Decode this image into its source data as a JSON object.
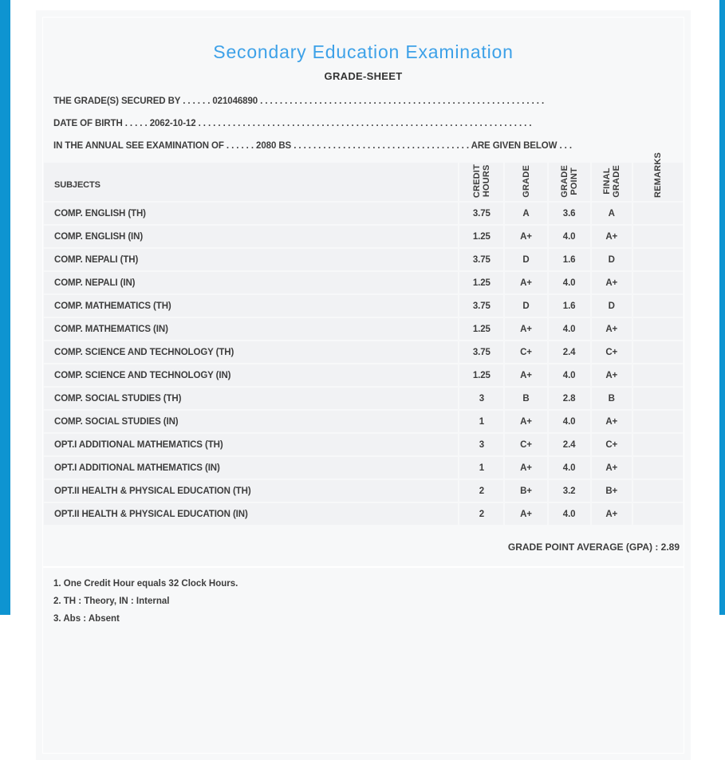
{
  "title": "Secondary Education Examination",
  "subtitle": "GRADE-SHEET",
  "info": {
    "secured_by": "THE GRADE(S) SECURED BY . . . . . . 021046890 . . . . . . . . . . . . . . . . . . . . . . . . . . . . . . . . . . . . . . . . . . . . . . . . . . . . . . . . . .",
    "dob": "DATE OF BIRTH . . . . . 2062-10-12 . . . . . . . . . . . . . . . . . . . . . . . . . . . . . . . . . . . . . . . . . . . . . . . . . . . . . . . . . . . . . . . . . . . .",
    "exam": "IN THE ANNUAL SEE EXAMINATION OF . . . . . . 2080 BS . . . . . . . . . . . . . . . . . . . . . . . . . . . . . . . . . . . . ARE GIVEN BELOW . . ."
  },
  "table": {
    "headers": {
      "subjects": "SUBJECTS",
      "credit_hours": "CREDIT\nHOURS",
      "grade": "GRADE",
      "grade_point": "GRADE\nPOINT",
      "final_grade": "FINAL\nGRADE",
      "remarks": "REMARKS"
    },
    "rows": [
      {
        "subject": "COMP. ENGLISH (TH)",
        "credit_hours": "3.75",
        "grade": "A",
        "grade_point": "3.6",
        "final_grade": "A",
        "remarks": ""
      },
      {
        "subject": "COMP. ENGLISH (IN)",
        "credit_hours": "1.25",
        "grade": "A+",
        "grade_point": "4.0",
        "final_grade": "A+",
        "remarks": ""
      },
      {
        "subject": "COMP. NEPALI (TH)",
        "credit_hours": "3.75",
        "grade": "D",
        "grade_point": "1.6",
        "final_grade": "D",
        "remarks": ""
      },
      {
        "subject": "COMP. NEPALI (IN)",
        "credit_hours": "1.25",
        "grade": "A+",
        "grade_point": "4.0",
        "final_grade": "A+",
        "remarks": ""
      },
      {
        "subject": "COMP. MATHEMATICS (TH)",
        "credit_hours": "3.75",
        "grade": "D",
        "grade_point": "1.6",
        "final_grade": "D",
        "remarks": ""
      },
      {
        "subject": "COMP. MATHEMATICS (IN)",
        "credit_hours": "1.25",
        "grade": "A+",
        "grade_point": "4.0",
        "final_grade": "A+",
        "remarks": ""
      },
      {
        "subject": "COMP. SCIENCE AND TECHNOLOGY (TH)",
        "credit_hours": "3.75",
        "grade": "C+",
        "grade_point": "2.4",
        "final_grade": "C+",
        "remarks": ""
      },
      {
        "subject": "COMP. SCIENCE AND TECHNOLOGY (IN)",
        "credit_hours": "1.25",
        "grade": "A+",
        "grade_point": "4.0",
        "final_grade": "A+",
        "remarks": ""
      },
      {
        "subject": "COMP. SOCIAL STUDIES (TH)",
        "credit_hours": "3",
        "grade": "B",
        "grade_point": "2.8",
        "final_grade": "B",
        "remarks": ""
      },
      {
        "subject": "COMP. SOCIAL STUDIES (IN)",
        "credit_hours": "1",
        "grade": "A+",
        "grade_point": "4.0",
        "final_grade": "A+",
        "remarks": ""
      },
      {
        "subject": "OPT.I ADDITIONAL MATHEMATICS (TH)",
        "credit_hours": "3",
        "grade": "C+",
        "grade_point": "2.4",
        "final_grade": "C+",
        "remarks": ""
      },
      {
        "subject": "OPT.I ADDITIONAL MATHEMATICS (IN)",
        "credit_hours": "1",
        "grade": "A+",
        "grade_point": "4.0",
        "final_grade": "A+",
        "remarks": ""
      },
      {
        "subject": "OPT.II HEALTH & PHYSICAL EDUCATION (TH)",
        "credit_hours": "2",
        "grade": "B+",
        "grade_point": "3.2",
        "final_grade": "B+",
        "remarks": ""
      },
      {
        "subject": "OPT.II HEALTH & PHYSICAL EDUCATION (IN)",
        "credit_hours": "2",
        "grade": "A+",
        "grade_point": "4.0",
        "final_grade": "A+",
        "remarks": ""
      }
    ]
  },
  "gpa_line": "GRADE POINT AVERAGE (GPA) : 2.89",
  "notes": [
    "1. One Credit Hour equals 32 Clock Hours.",
    "2. TH : Theory, IN : Internal",
    "3. Abs : Absent"
  ],
  "colors": {
    "accent_blue": "#0e94d1",
    "title_blue": "#3da1e8",
    "text_ink": "#3d3d3d",
    "card_background": "#f7f8f9",
    "cell_background": "#f1f2f4"
  }
}
